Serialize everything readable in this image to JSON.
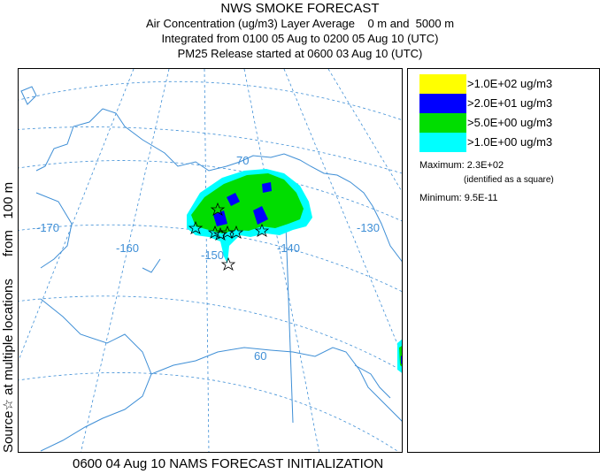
{
  "title": {
    "line1": "NWS SMOKE FORECAST",
    "line2": "Air Concentration (ug/m3) Layer Average    0 m and  5000 m",
    "line3": "Integrated from 0100 05 Aug to 0200 05 Aug 10 (UTC)",
    "line4": "PM25 Release started at 0600 03 Aug 10 (UTC)"
  },
  "side_label": {
    "prefix": "Source",
    "star_icon": "star-icon",
    "text": "at multiple locations      from   100 m"
  },
  "footer": "0600 04 Aug 10 NAMS FORECAST INITIALIZATION",
  "map": {
    "graticule_labels": {
      "lat70": "70",
      "lat60": "60",
      "lon170": "-170",
      "lon160": "-160",
      "lon150": "-150",
      "lon140": "-140",
      "lon130": "-130"
    },
    "colors": {
      "graticule": "#3f8fd6",
      "coast": "#3f8fd6",
      "cyan": "#00ffff",
      "green": "#00dd00",
      "blue": "#0000ff",
      "yellow": "#ffff00"
    }
  },
  "legend": {
    "entries": [
      {
        "color": "#ffff00",
        "label": ">1.0E+02 ug/m3"
      },
      {
        "color": "#0000ff",
        "label": ">2.0E+01 ug/m3"
      },
      {
        "color": "#00dd00",
        "label": ">5.0E+00 ug/m3"
      },
      {
        "color": "#00ffff",
        "label": ">1.0E+00 ug/m3"
      }
    ],
    "maximum_label": "Maximum:",
    "maximum_value": "2.3E+02",
    "maximum_note": "(identified as a square)",
    "minimum_label": "Minimum:",
    "minimum_value": "9.5E-11"
  }
}
